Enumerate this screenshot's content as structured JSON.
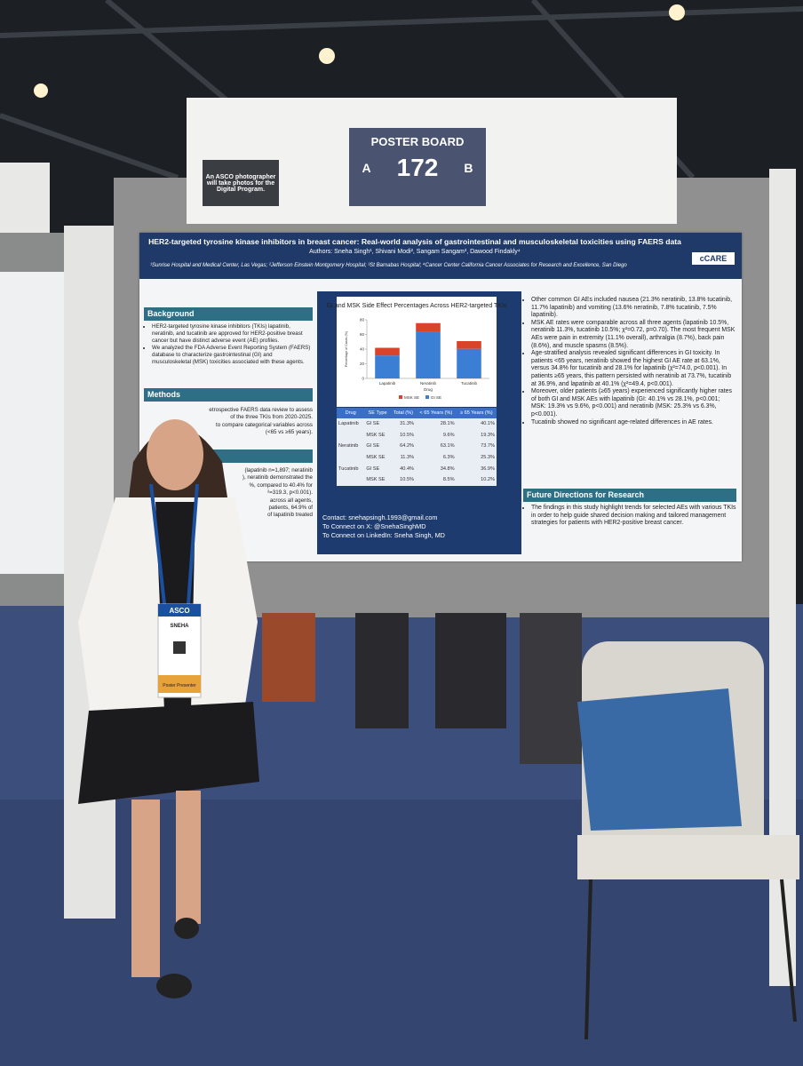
{
  "sign": {
    "photographer_note": "An ASCO photographer will take photos for the Digital Program.",
    "label": "POSTER BOARD",
    "side_a": "A",
    "number": "172",
    "side_b": "B"
  },
  "poster": {
    "title": "HER2-targeted tyrosine kinase inhibitors in breast cancer: Real-world analysis of gastrointestinal and musculoskeletal toxicities using FAERS data",
    "authors": "Authors: Sneha Singh¹, Shivani Modi², Sangam Sangam³, Dawood Findakly⁴",
    "affiliations": "¹Sunrise Hospital and Medical Center, Las Vegas; ²Jefferson Einstein Montgomery Hospital; ³St Barnabas Hospital; ⁴Cancer Center California Cancer Associates for Research and Excellence, San Diego",
    "logo": "cCARE",
    "background": {
      "heading": "Background",
      "bullets": [
        "HER2-targeted tyrosine kinase inhibitors (TKIs) lapatinib, neratinib, and tucatinib are approved for HER2-positive breast cancer but have distinct adverse event (AE) profiles.",
        "We analyzed the FDA Adverse Event Reporting System (FAERS) database to characterize gastrointestinal (GI) and musculoskeletal (MSK) toxicities associated with these agents."
      ]
    },
    "methods": {
      "heading": "Methods",
      "lines": [
        "etrospective FAERS data review to assess",
        "of the three TKIs from 2020-2025.",
        "to compare categorical variables across",
        "(<65 vs ≥65 years)."
      ]
    },
    "results_left": {
      "lines": [
        "(lapatinib n=1,897; neratinib",
        "), neratinib demonstrated the",
        "%, compared to 40.4% for",
        "²=319.3, p<0.001).",
        "across all agents,",
        "patients, 64.9% of",
        "of lapatinib treated"
      ]
    },
    "chart": {
      "type": "bar",
      "stacked": true,
      "title": "GI and MSK Side Effect Percentages Across HER2-targeted TKIs",
      "y_label": "Percentage of Cases (%)",
      "x_label": "Drug",
      "categories": [
        "Lapatinib",
        "Neratinib",
        "Tucatinib"
      ],
      "series": [
        {
          "name": "MSK SE",
          "color": "#d8432a",
          "values": [
            10.5,
            11.3,
            10.5
          ]
        },
        {
          "name": "GI SE",
          "color": "#3b7fd4",
          "values": [
            31.3,
            64.2,
            40.4
          ]
        }
      ],
      "ylim": [
        0,
        80
      ],
      "yticks": [
        0,
        20,
        40,
        60,
        80
      ]
    },
    "table": {
      "header": [
        "Drug",
        "SE Type",
        "Total (%)",
        "< 65 Years (%)",
        "≥ 65 Years (%)"
      ],
      "rows": [
        [
          "Lapatinib",
          "GI SE",
          "31.3%",
          "28.1%",
          "40.1%"
        ],
        [
          null,
          "MSK SE",
          "10.5%",
          "9.6%",
          "19.3%"
        ],
        [
          "Neratinib",
          "GI SE",
          "64.2%",
          "63.1%",
          "73.7%"
        ],
        [
          null,
          "MSK SE",
          "11.3%",
          "6.3%",
          "25.3%"
        ],
        [
          "Tucatinib",
          "GI SE",
          "40.4%",
          "34.8%",
          "36.9%"
        ],
        [
          null,
          "MSK SE",
          "10.5%",
          "8.5%",
          "10.2%"
        ]
      ]
    },
    "contact": [
      "Contact: snehapsingh.1993@gmail.com",
      "To Connect on X: @SnehaSinghMD",
      "To Connect on LinkedIn: Sneha Singh, MD"
    ],
    "results_right": {
      "bullets": [
        "Other common GI AEs included nausea (21.3% neratinib, 13.8% tucatinib, 11.7% lapatinib) and vomiting (13.6% neratinib, 7.8% tucatinib, 7.5% lapatinib).",
        "MSK AE rates were comparable across all three agents (lapatinib 10.5%, neratinib 11.3%, tucatinib 10.5%; χ²=0.72, p=0.70). The most frequent MSK AEs were pain in extremity (11.1% overall), arthralgia (8.7%), back pain (8.6%), and muscle spasms (8.5%).",
        "Age-stratified analysis revealed significant differences in GI toxicity. In patients <65 years, neratinib showed the highest GI AE rate at 63.1%, versus 34.8% for tucatinib and 28.1% for lapatinib (χ²=74.0, p<0.001). In patients ≥65 years, this pattern persisted with neratinib at 73.7%, tucatinib at 36.9%, and lapatinib at 40.1% (χ²=49.4, p<0.001).",
        "Moreover, older patients (≥65 years) experienced significantly higher rates of both GI and MSK AEs with lapatinib (GI: 40.1% vs 28.1%, p<0.001; MSK: 19.3% vs 9.6%, p<0.001) and neratinib (MSK: 25.3% vs 6.3%, p<0.001).",
        "Tucatinib showed no significant age-related differences in AE rates."
      ]
    },
    "future": {
      "heading": "Future Directions for Research",
      "bullets": [
        "The findings in this study highlight trends for selected AEs with various TKIs in order to help guide shared decision making and tailored management strategies for patients with HER2-positive breast cancer."
      ]
    }
  },
  "badge": {
    "org": "ASCO",
    "name": "SNEHA",
    "role": "Poster Presenter"
  }
}
